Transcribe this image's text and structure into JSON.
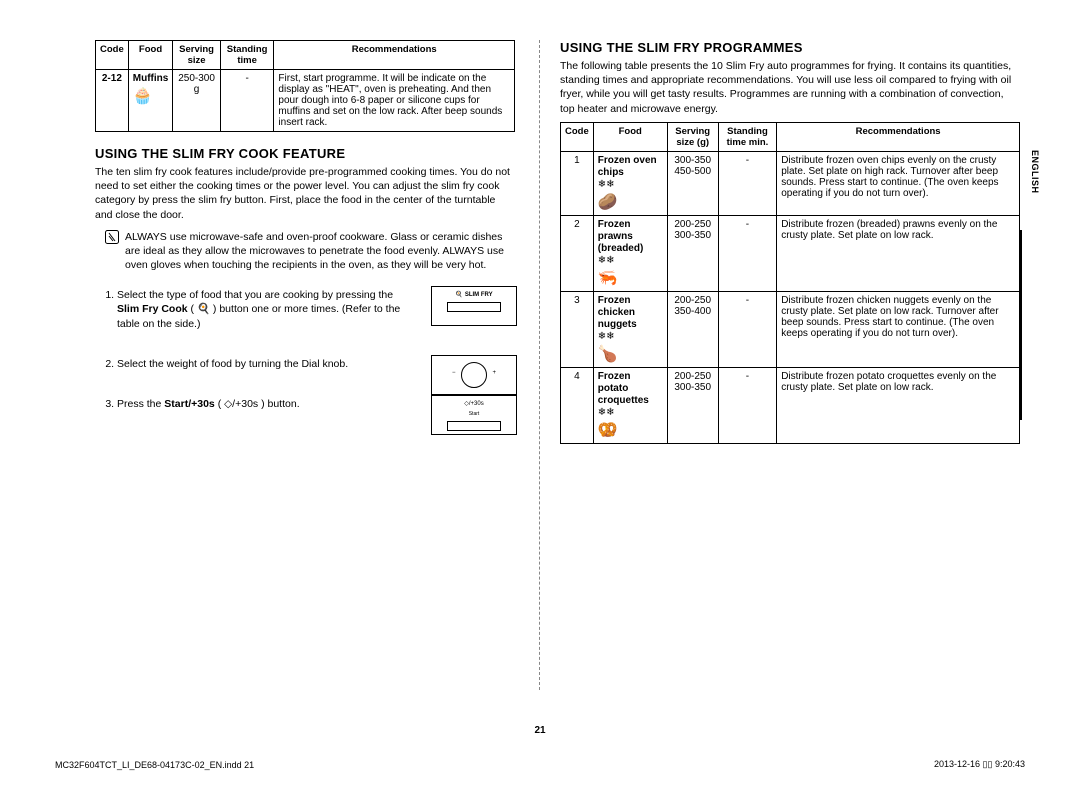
{
  "tables": {
    "left": {
      "headers": [
        "Code",
        "Food",
        "Serving size",
        "Standing time",
        "Recommendations"
      ],
      "row": {
        "code": "2-12",
        "food": "Muffins",
        "icon": "🧁",
        "serving": "250-300 g",
        "standing": "-",
        "rec": "First, start programme. It will be indicate on the display as \"HEAT\", oven is preheating. And then pour dough into 6-8 paper or silicone cups for muffins and set on the low rack. After beep sounds insert rack."
      }
    },
    "right": {
      "headers": [
        "Code",
        "Food",
        "Serving size (g)",
        "Standing time min.",
        "Recommendations"
      ],
      "rows": [
        {
          "code": "1",
          "food": "Frozen oven chips",
          "icon": "🥔",
          "serving": "300-350\n450-500",
          "standing": "-",
          "rec": "Distribute frozen oven chips evenly on the crusty plate. Set plate on high rack. Turnover after beep sounds. Press start to continue. (The oven keeps operating if you do not turn over)."
        },
        {
          "code": "2",
          "food": "Frozen prawns (breaded)",
          "icon": "🦐",
          "serving": "200-250\n300-350",
          "standing": "-",
          "rec": "Distribute frozen (breaded) prawns evenly on the crusty plate. Set plate on low rack."
        },
        {
          "code": "3",
          "food": "Frozen chicken nuggets",
          "icon": "🍗",
          "serving": "200-250\n350-400",
          "standing": "-",
          "rec": "Distribute frozen chicken nuggets evenly on the crusty plate. Set plate on low rack. Turnover after beep sounds. Press start to continue. (The oven keeps operating if you do not turn over)."
        },
        {
          "code": "4",
          "food": "Frozen potato croquettes",
          "icon": "🥨",
          "serving": "200-250\n300-350",
          "standing": "-",
          "rec": "Distribute frozen potato croquettes evenly on the crusty plate. Set plate on low rack."
        }
      ]
    }
  },
  "sections": {
    "cook_feature": {
      "title": "USING THE SLIM FRY COOK FEATURE",
      "intro": "The ten slim fry cook features include/provide pre-programmed cooking times. You do not need to set either the cooking times or the power level. You can adjust the slim fry cook category by press the slim fry button. First, place the food in the center of the turntable and close the door.",
      "note": "ALWAYS use microwave-safe and oven-proof cookware. Glass or ceramic dishes are ideal as they allow the microwaves to penetrate the food evenly. ALWAYS use oven gloves when touching the recipients in the oven, as they will be very hot.",
      "steps": [
        {
          "pre": "Select the type of food that you are cooking by pressing the ",
          "bold": "Slim Fry Cook",
          "post": " ( 🍳 ) button one or more times. (Refer to the table on the side.)",
          "fig": "slimfry"
        },
        {
          "pre": "Select the weight of food by turning the Dial knob.",
          "bold": "",
          "post": "",
          "fig": "dial"
        },
        {
          "pre": "Press the ",
          "bold": "Start/+30s",
          "post": " ( ◇/+30s ) button.",
          "fig": "start"
        }
      ]
    },
    "programmes": {
      "title": "USING THE SLIM FRY PROGRAMMES",
      "intro": "The following table presents the 10 Slim Fry auto programmes for frying. It contains its quantities, standing times and appropriate recommendations. You will use less oil compared to frying with oil fryer, while you will get tasty results. Programmes are running with a combination of convection, top heater and microwave energy."
    }
  },
  "side_tab": "ENGLISH",
  "page_number": "21",
  "footer": {
    "left": "MC32F604TCT_LI_DE68-04173C-02_EN.indd   21",
    "right": "2013-12-16   ▯▯ 9:20:43"
  },
  "fig_labels": {
    "slimfry": "SLIM FRY",
    "start": "◇/+30s",
    "start_sub": "Start"
  }
}
